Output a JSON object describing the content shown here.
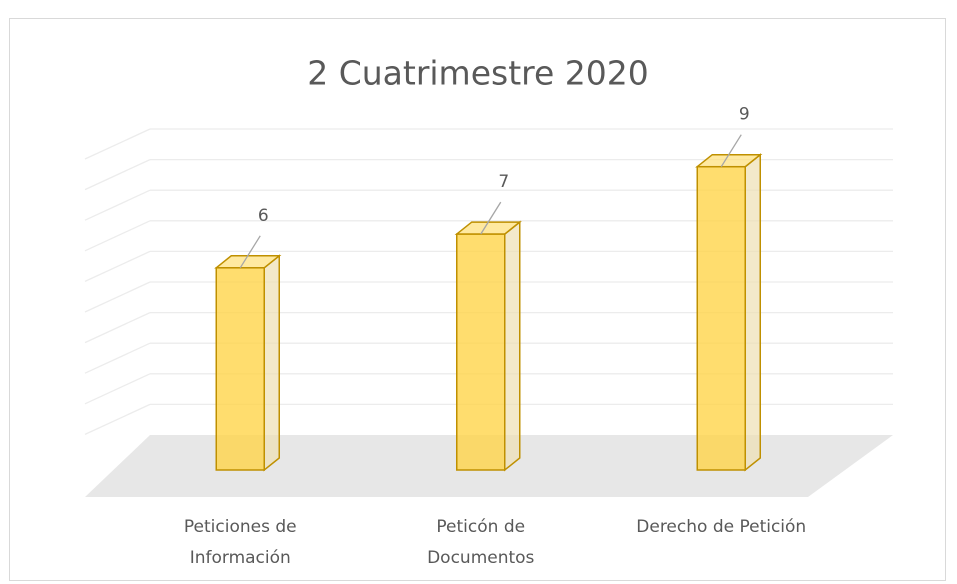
{
  "chart_data": {
    "type": "bar3d",
    "title": "2 Cuatrimestre 2020",
    "categories": [
      "Peticiones de Información",
      "Peticón de Documentos",
      "Derecho de Petición"
    ],
    "values": [
      6,
      7,
      9
    ],
    "color": "#ffd54a",
    "ylim": [
      0,
      10
    ],
    "yticks": [
      0,
      1,
      2,
      3,
      4,
      5,
      6,
      7,
      8,
      9,
      10
    ],
    "grid": true
  }
}
